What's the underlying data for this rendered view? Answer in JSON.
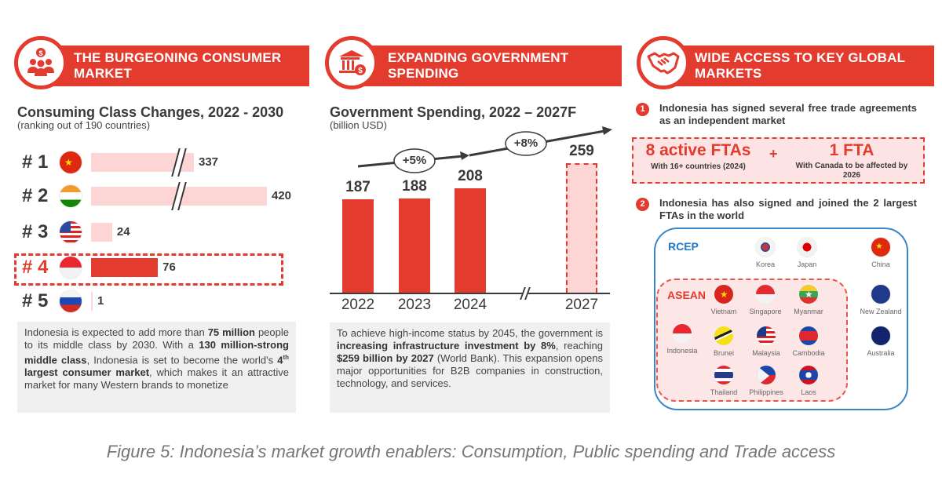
{
  "col1": {
    "banner": "THE BURGEONING CONSUMER MARKET",
    "icon": "consumers-dollar-icon",
    "title": "Consuming Class Changes, 2022 - 2030",
    "subtitle": "(ranking out of 190 countries)",
    "text_parts": [
      "Indonesia is expected to add more than ",
      "75 million",
      " people to its middle class by 2030. With a ",
      "130 million-strong middle class",
      ", Indonesia is set to become the world's ",
      "4",
      "th",
      " largest consumer market",
      ", which makes it an attractive market for many Western brands to monetize"
    ]
  },
  "col2": {
    "banner": "EXPANDING GOVERNMENT SPENDING",
    "icon": "government-building-money-icon",
    "title": "Government Spending, 2022 – 2027F",
    "subtitle": "(billion USD)",
    "growth_labels": [
      "+5%",
      "+8%"
    ],
    "text_parts": [
      "To achieve high-income status by 2045, the government is ",
      "increasing infrastructure investment by 8%",
      ", reaching ",
      "$259 billion by 2027",
      " (World Bank). This expansion opens major opportunities for B2B companies in construction, technology, and services."
    ]
  },
  "col3": {
    "banner": "WIDE ACCESS TO KEY GLOBAL MARKETS",
    "icon": "handshake-icon",
    "item1_num": "1",
    "item1": "Indonesia has signed several free trade agreements as an independent market",
    "fta_a_big": "8 active FTAs",
    "fta_a_small": "With 16+ countries (2024)",
    "plus": "+",
    "fta_b_big": "1 FTA",
    "fta_b_small": "With Canada to be affected by 2026",
    "item2_num": "2",
    "item2": "Indonesia has also signed and joined the 2 largest FTAs in the world",
    "rcep_label": "RCEP",
    "asean_label": "ASEAN",
    "countries": [
      {
        "name": "Korea",
        "flag": "korea"
      },
      {
        "name": "Japan",
        "flag": "japan"
      },
      {
        "name": "China",
        "flag": "china"
      },
      {
        "name": "Vietnam",
        "flag": "vietnam"
      },
      {
        "name": "Singapore",
        "flag": "singapore"
      },
      {
        "name": "Myanmar",
        "flag": "myanmar"
      },
      {
        "name": "New Zealand",
        "flag": "nz"
      },
      {
        "name": "Indonesia",
        "flag": "indonesia"
      },
      {
        "name": "Brunei",
        "flag": "brunei"
      },
      {
        "name": "Malaysia",
        "flag": "malaysia"
      },
      {
        "name": "Cambodia",
        "flag": "cambodia"
      },
      {
        "name": "Australia",
        "flag": "australia"
      },
      {
        "name": "Thailand",
        "flag": "thailand"
      },
      {
        "name": "Philippines",
        "flag": "philippines"
      },
      {
        "name": "Laos",
        "flag": "laos"
      }
    ]
  },
  "caption": "Figure 5: Indonesia’s market growth enablers: Consumption, Public spending and Trade access",
  "colors": {
    "accent": "#e33b2e",
    "light": "#fdd5d5",
    "rcep": "#3a86c8",
    "textbox": "#f0f0f0"
  },
  "chart_data": [
    {
      "type": "bar",
      "orientation": "horizontal",
      "title": "Consuming Class Changes, 2022 - 2030",
      "subtitle": "(ranking out of 190 countries)",
      "categories": [
        "# 1",
        "# 2",
        "# 3",
        "# 4",
        "# 5"
      ],
      "flags": [
        "china",
        "india",
        "usa",
        "indonesia",
        "russia"
      ],
      "values": [
        337,
        420,
        24,
        76,
        1
      ],
      "axis_break": [
        true,
        true,
        false,
        false,
        false
      ],
      "highlight": "# 4"
    },
    {
      "type": "bar",
      "title": "Government Spending, 2022 – 2027F",
      "ylabel": "(billion USD)",
      "categories": [
        "2022",
        "2023",
        "2024",
        "2027"
      ],
      "values": [
        187,
        188,
        208,
        259
      ],
      "forecast": [
        false,
        false,
        false,
        true
      ],
      "axis_break_before": "2027"
    }
  ]
}
